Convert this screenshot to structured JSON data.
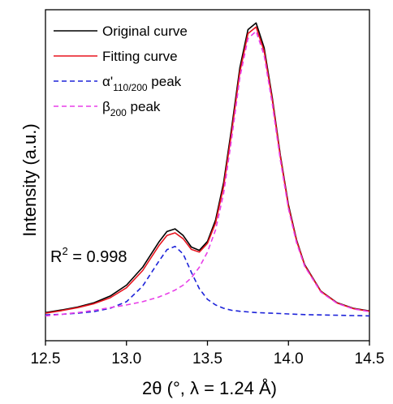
{
  "chart_data": {
    "type": "line",
    "xlabel": "2θ (°, λ = 1.24 Å)",
    "ylabel": "Intensity (a.u.)",
    "xlim": [
      12.5,
      14.5
    ],
    "ylim": [
      0,
      1.0
    ],
    "x_ticks": [
      "12.5",
      "13.0",
      "13.5",
      "14.0",
      "14.5"
    ],
    "y_ticks_labeled": false,
    "grid": false,
    "legend_position": "top-left",
    "annotation": {
      "prefix": "R",
      "sup": "2",
      "suffix": " = 0.998"
    },
    "x": [
      12.5,
      12.6,
      12.7,
      12.8,
      12.9,
      13.0,
      13.1,
      13.2,
      13.25,
      13.3,
      13.35,
      13.4,
      13.45,
      13.5,
      13.55,
      13.6,
      13.65,
      13.7,
      13.75,
      13.8,
      13.85,
      13.9,
      13.95,
      14.0,
      14.05,
      14.1,
      14.2,
      14.3,
      14.4,
      14.5
    ],
    "series": [
      {
        "name": "Original curve",
        "legend_prefix": "Original curve",
        "legend_sub": "",
        "legend_suffix": "",
        "color": "#000000",
        "dash": "none",
        "values": [
          0.085,
          0.093,
          0.102,
          0.115,
          0.135,
          0.168,
          0.222,
          0.298,
          0.33,
          0.338,
          0.318,
          0.283,
          0.273,
          0.3,
          0.365,
          0.478,
          0.645,
          0.825,
          0.94,
          0.96,
          0.885,
          0.735,
          0.56,
          0.41,
          0.305,
          0.23,
          0.15,
          0.115,
          0.098,
          0.09
        ]
      },
      {
        "name": "Fitting curve",
        "legend_prefix": "Fitting curve",
        "legend_sub": "",
        "legend_suffix": "",
        "color": "#e8141e",
        "dash": "none",
        "values": [
          0.083,
          0.091,
          0.1,
          0.112,
          0.13,
          0.16,
          0.212,
          0.287,
          0.318,
          0.326,
          0.308,
          0.276,
          0.268,
          0.294,
          0.356,
          0.466,
          0.632,
          0.812,
          0.928,
          0.948,
          0.875,
          0.728,
          0.555,
          0.405,
          0.302,
          0.228,
          0.149,
          0.114,
          0.097,
          0.089
        ]
      },
      {
        "name": "α'110/200 peak",
        "legend_prefix": "α'",
        "legend_sub": "110/200",
        "legend_suffix": " peak",
        "color": "#1d23d9",
        "dash": "6,4",
        "values": [
          0.078,
          0.08,
          0.083,
          0.088,
          0.098,
          0.118,
          0.165,
          0.24,
          0.275,
          0.285,
          0.262,
          0.207,
          0.157,
          0.125,
          0.108,
          0.098,
          0.092,
          0.089,
          0.087,
          0.085,
          0.084,
          0.083,
          0.082,
          0.081,
          0.08,
          0.079,
          0.078,
          0.077,
          0.076,
          0.075
        ]
      },
      {
        "name": "β200 peak",
        "legend_prefix": "β",
        "legend_sub": "200",
        "legend_suffix": " peak",
        "color": "#e83ee8",
        "dash": "6,4",
        "values": [
          0.075,
          0.08,
          0.085,
          0.092,
          0.1,
          0.108,
          0.118,
          0.132,
          0.142,
          0.153,
          0.168,
          0.19,
          0.222,
          0.268,
          0.335,
          0.445,
          0.613,
          0.795,
          0.913,
          0.935,
          0.862,
          0.716,
          0.545,
          0.398,
          0.296,
          0.225,
          0.147,
          0.113,
          0.096,
          0.088
        ]
      }
    ]
  }
}
